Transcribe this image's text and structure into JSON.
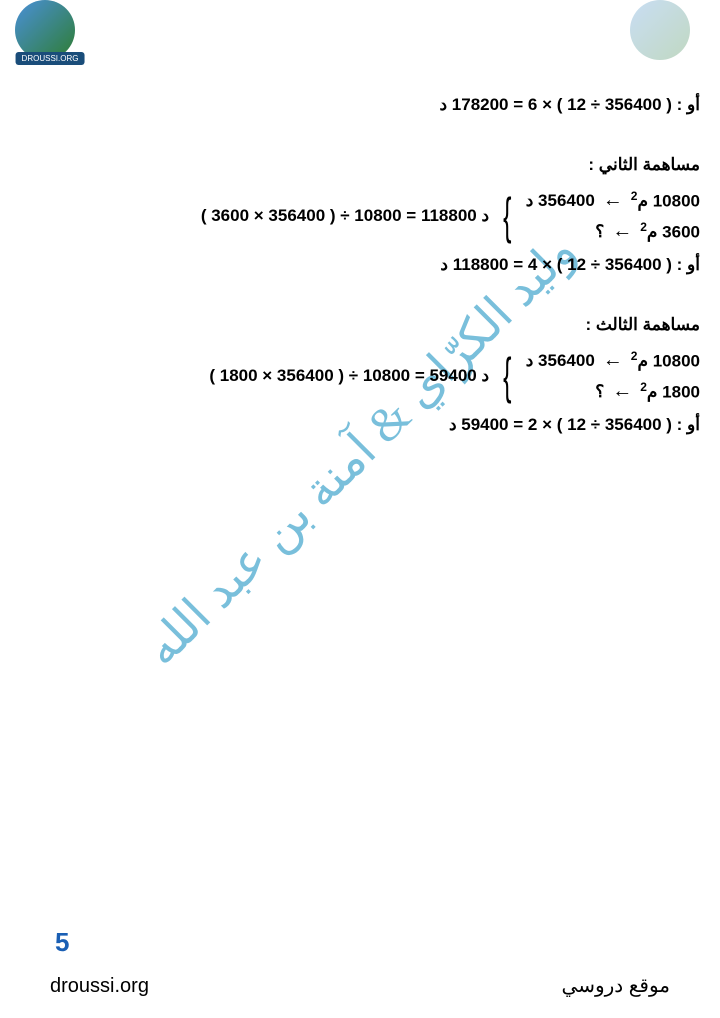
{
  "logo_text": "DROUSSI.ORG",
  "watermark": "وليد الكرّاي & آمنة بن عبد الله",
  "line1": "أو : ( 356400 ÷ 12 ) × 6 = 178200 د",
  "section2": {
    "heading": "مساهمة الثاني :",
    "prop1_left": "10800 م",
    "prop1_arrow": "←",
    "prop1_right": "356400 د",
    "prop2_left": "3600 م",
    "prop2_arrow": "←",
    "prop2_right": "؟",
    "result": "( 3600 × 356400 ) ÷ 10800 = 118800 د",
    "or_line": "أو : ( 356400 ÷ 12 ) × 4 = 118800 د"
  },
  "section3": {
    "heading": "مساهمة الثالث :",
    "prop1_left": "10800 م",
    "prop1_arrow": "←",
    "prop1_right": "356400 د",
    "prop2_left": "1800 م",
    "prop2_arrow": "←",
    "prop2_right": "؟",
    "result": "( 1800 × 356400 ) ÷ 10800 = 59400 د",
    "or_line": "أو : ( 356400 ÷ 12 ) × 2 = 59400 د"
  },
  "page_number": "5",
  "footer_left": "droussi.org",
  "footer_right": "موقع دروسي",
  "colors": {
    "text": "#000000",
    "page_num": "#1a5fb4",
    "watermark": "#2196c4",
    "background": "#ffffff"
  }
}
